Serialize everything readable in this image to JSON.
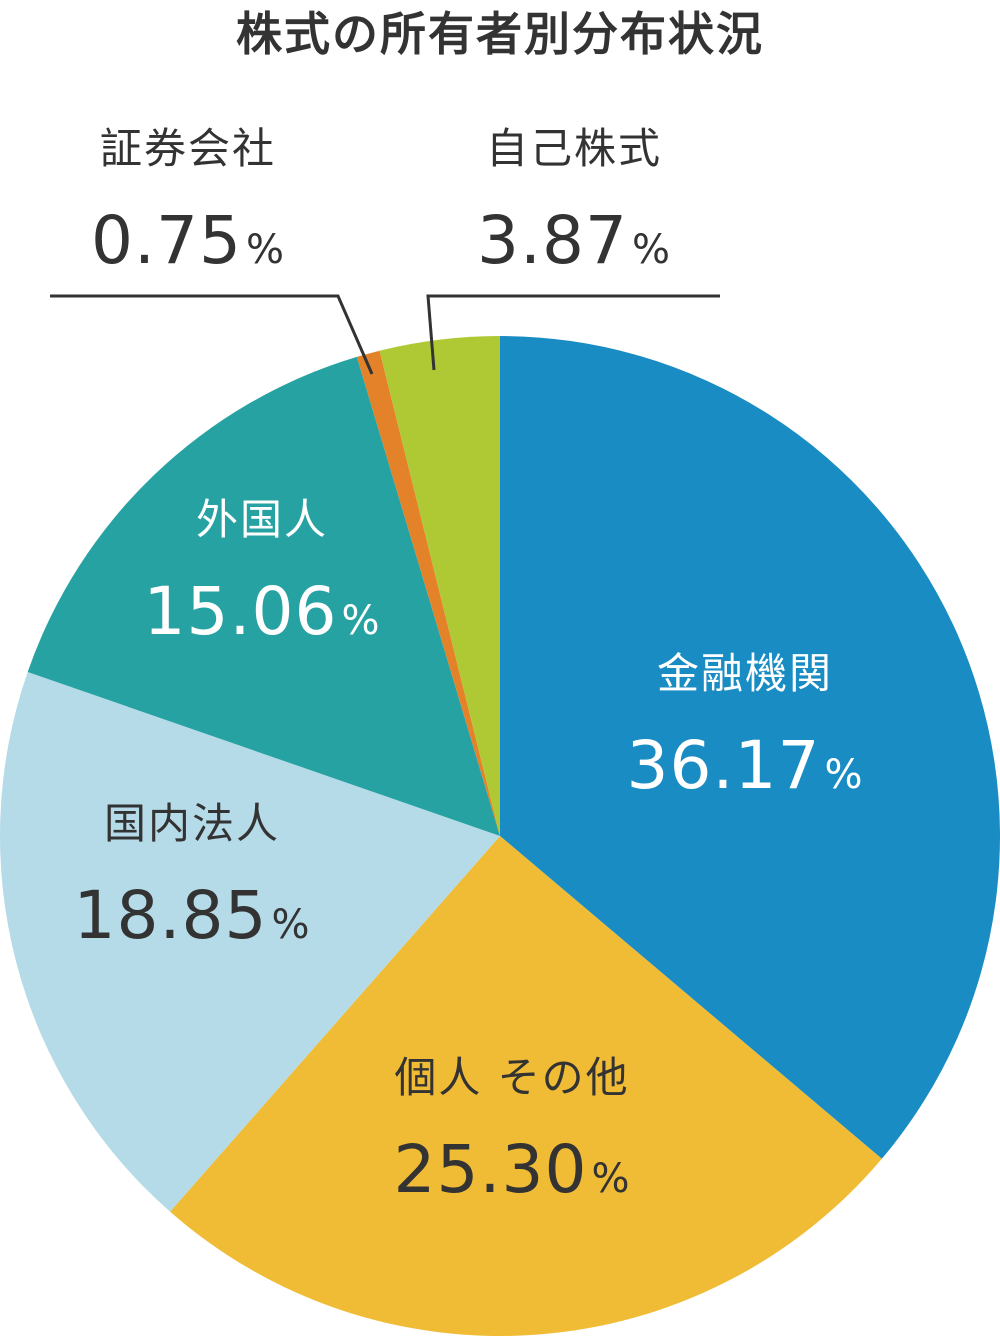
{
  "chart_data": {
    "type": "pie",
    "title": "株式の所有者別分布状況",
    "unit": "%",
    "slices": [
      {
        "label": "金融機関",
        "value": 36.17,
        "value_text": "36.17",
        "color": "#1a8cc4",
        "text_color": "#ffffff"
      },
      {
        "label": "個人 その他",
        "value": 25.3,
        "value_text": "25.30",
        "color": "#f0bc35",
        "text_color": "#333333"
      },
      {
        "label": "国内法人",
        "value": 18.85,
        "value_text": "18.85",
        "color": "#b5dbe8",
        "text_color": "#333333"
      },
      {
        "label": "外国人",
        "value": 15.06,
        "value_text": "15.06",
        "color": "#27a2a3",
        "text_color": "#ffffff"
      },
      {
        "label": "証券会社",
        "value": 0.75,
        "value_text": "0.75",
        "color": "#e4822a",
        "text_color": "#333333"
      },
      {
        "label": "自己株式",
        "value": 3.87,
        "value_text": "3.87",
        "color": "#afc934",
        "text_color": "#333333"
      }
    ]
  }
}
